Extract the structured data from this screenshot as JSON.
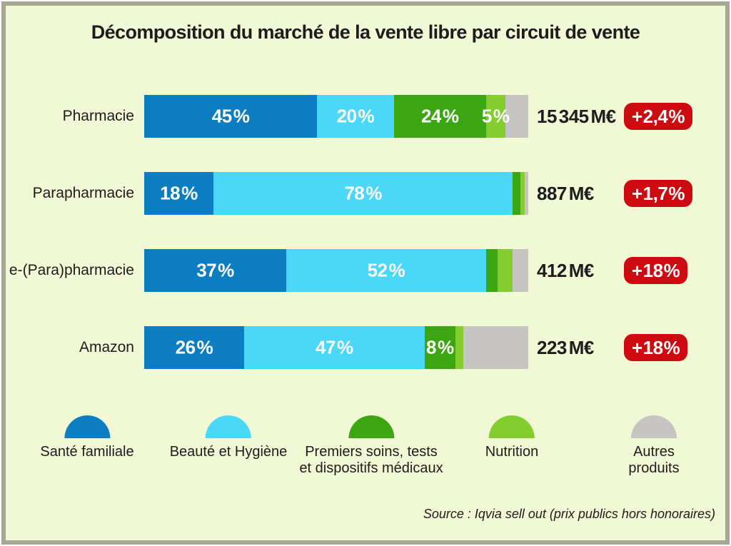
{
  "title": "Décomposition du marché de la vente libre par circuit de vente",
  "source": "Source : Iqvia sell out (prix publics hors honoraires)",
  "colors": {
    "background": "#f0f8d6",
    "frame_border": "#a8a695",
    "text": "#1d1d1b",
    "bar_label_text": "#ffffff",
    "badge_background": "#cc0a10",
    "sante_familiale": "#0c7dc1",
    "beaute_hygiene": "#4bd7f8",
    "premiers_soins": "#3ca512",
    "nutrition": "#84cd2f",
    "autres_produits": "#c6c5c3"
  },
  "chart_data": {
    "type": "bar",
    "stacked": true,
    "orientation": "horizontal",
    "unit": "%",
    "title": "Décomposition du marché de la vente libre par circuit de vente",
    "legend_position": "bottom",
    "grid": false,
    "categories": [
      "Pharmacie",
      "Parapharmacie",
      "e-(Para)pharmacie",
      "Amazon"
    ],
    "series": [
      {
        "name": "Santé familiale",
        "color": "#0c7dc1",
        "values": [
          45,
          18,
          37,
          26
        ]
      },
      {
        "name": "Beauté et Hygiène",
        "color": "#4bd7f8",
        "values": [
          20,
          78,
          52,
          47
        ]
      },
      {
        "name": "Premiers soins, tests et dispositifs médicaux",
        "color": "#3ca512",
        "values": [
          24,
          2,
          3,
          8
        ]
      },
      {
        "name": "Nutrition",
        "color": "#84cd2f",
        "values": [
          5,
          1,
          4,
          2
        ]
      },
      {
        "name": "Autres produits",
        "color": "#c6c5c3",
        "values": [
          6,
          1,
          4,
          17
        ]
      }
    ],
    "bar_labels": [
      [
        "45 %",
        "20 %",
        "24 %",
        "5 %",
        ""
      ],
      [
        "18 %",
        "78 %",
        "",
        "",
        ""
      ],
      [
        "37 %",
        "52 %",
        "",
        "",
        ""
      ],
      [
        "26 %",
        "47 %",
        "8 %",
        "",
        ""
      ]
    ],
    "totals": [
      "15 345 M€",
      "887 M€",
      "412 M€",
      "223 M€"
    ],
    "growth_badges": [
      "+ 2,4 %",
      "+ 1,7 %",
      "+ 18 %",
      "+ 18 %"
    ],
    "badge_color": "#cc0a10"
  },
  "legend": {
    "items": [
      {
        "label": "Santé familiale",
        "color": "#0c7dc1"
      },
      {
        "label": "Beauté et Hygiène",
        "color": "#4bd7f8"
      },
      {
        "label": "Premiers soins, tests\net dispositifs médicaux",
        "color": "#3ca512"
      },
      {
        "label": "Nutrition",
        "color": "#84cd2f"
      },
      {
        "label": "Autres produits",
        "color": "#c6c5c3"
      }
    ]
  }
}
